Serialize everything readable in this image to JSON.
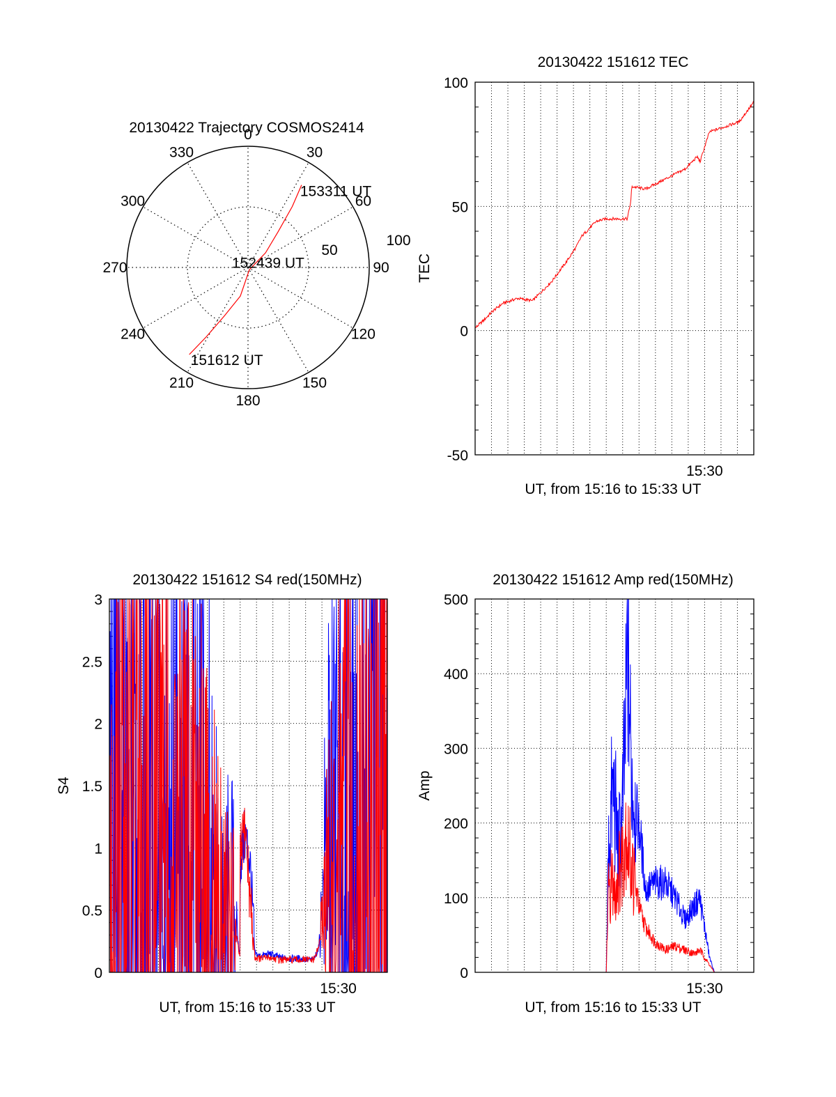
{
  "chart_data": [
    {
      "type": "polar",
      "title": "20130422 Trajectory COSMOS2414",
      "angle_ticks": [
        "0",
        "30",
        "60",
        "90",
        "120",
        "150",
        "180",
        "210",
        "240",
        "270",
        "300",
        "330"
      ],
      "radius_ticks": [
        "50",
        "100"
      ],
      "rlim": [
        0,
        100
      ],
      "grid": true,
      "series": [
        {
          "color": "#ff0000",
          "points": [
            {
              "az": 214,
              "el": 12,
              "label": "151612 UT"
            },
            {
              "az": 211,
              "el": 30
            },
            {
              "az": 206,
              "el": 50
            },
            {
              "az": 195,
              "el": 68
            },
            {
              "az": 150,
              "el": 88,
              "label": "152439 UT"
            },
            {
              "az": 50,
              "el": 73
            },
            {
              "az": 40,
              "el": 55
            },
            {
              "az": 36,
              "el": 34
            },
            {
              "az": 33,
              "el": 17,
              "label": "153311 UT"
            }
          ]
        }
      ]
    },
    {
      "type": "line",
      "title": "20130422 151612 TEC",
      "xlabel": "UT, from 15:16 to 15:33 UT",
      "ylabel": "TEC",
      "xlim": [
        15.2667,
        15.55
      ],
      "ylim": [
        -50,
        100
      ],
      "yticks": [
        "100",
        "50",
        "0",
        "-50"
      ],
      "xticks": [
        {
          "value": 15.5,
          "label": "15:30"
        }
      ],
      "grid": true,
      "series": [
        {
          "color": "#ff0000",
          "x": [
            15.2667,
            15.275,
            15.285,
            15.295,
            15.31,
            15.325,
            15.33,
            15.345,
            15.36,
            15.37,
            15.375,
            15.385,
            15.39,
            15.4,
            15.41,
            15.4215,
            15.425,
            15.426,
            15.44,
            15.46,
            15.48,
            15.4925,
            15.4955,
            15.5,
            15.505,
            15.52,
            15.535,
            15.55
          ],
          "y": [
            1,
            4,
            8,
            11,
            13,
            12,
            14,
            20,
            28,
            34,
            38,
            42,
            44,
            45,
            45,
            45,
            52,
            58,
            57,
            61,
            65,
            70,
            68,
            74,
            80,
            82,
            84,
            92
          ]
        }
      ]
    },
    {
      "type": "line",
      "title": "20130422 151612 S4 red(150MHz)",
      "xlabel": "UT, from 15:16 to 15:33 UT",
      "ylabel": "S4",
      "xlim": [
        15.2667,
        15.55
      ],
      "ylim": [
        0,
        3
      ],
      "yticks": [
        "3",
        "2.5",
        "2",
        "1.5",
        "1",
        "0.5",
        "0"
      ],
      "xticks": [
        {
          "value": 15.5,
          "label": "15:30"
        }
      ],
      "grid": true,
      "series": [
        {
          "color": "#0000ff",
          "x": [
            15.2667,
            15.28,
            15.3,
            15.32,
            15.34,
            15.36,
            15.37,
            15.375,
            15.38,
            15.39,
            15.4,
            15.4,
            15.405,
            15.41,
            15.415,
            15.42,
            15.43,
            15.44,
            15.45,
            15.46,
            15.47,
            15.475,
            15.48,
            15.49,
            15.5,
            15.52,
            15.535,
            15.55
          ],
          "y": [
            2.6,
            2.9,
            2.3,
            2.1,
            2.0,
            1.9,
            1.5,
            1.2,
            0.9,
            0.8,
            0.1,
            0.9,
            1.1,
            0.9,
            0.15,
            0.13,
            0.15,
            0.12,
            0.11,
            0.11,
            0.1,
            0.1,
            0.2,
            1.3,
            1.9,
            2.5,
            2.9,
            2.8
          ]
        },
        {
          "color": "#ff0000",
          "x": [
            15.2667,
            15.28,
            15.3,
            15.32,
            15.34,
            15.36,
            15.37,
            15.375,
            15.38,
            15.39,
            15.4,
            15.4,
            15.405,
            15.41,
            15.415,
            15.42,
            15.43,
            15.44,
            15.45,
            15.46,
            15.47,
            15.475,
            15.48,
            15.49,
            15.5,
            15.52,
            15.535,
            15.55
          ],
          "y": [
            1.9,
            2.2,
            2.1,
            1.9,
            1.7,
            1.5,
            1.2,
            1.0,
            0.7,
            0.6,
            0.1,
            0.9,
            1.2,
            0.6,
            0.12,
            0.11,
            0.12,
            0.1,
            0.1,
            0.1,
            0.1,
            0.1,
            0.2,
            0.8,
            1.4,
            2.0,
            2.6,
            2.8
          ]
        }
      ]
    },
    {
      "type": "line",
      "title": "20130422 151612 Amp red(150MHz)",
      "xlabel": "UT, from 15:16 to 15:33 UT",
      "ylabel": "Amp",
      "xlim": [
        15.2667,
        15.55
      ],
      "ylim": [
        0,
        500
      ],
      "yticks": [
        "500",
        "400",
        "300",
        "200",
        "100",
        "0"
      ],
      "xticks": [
        {
          "value": 15.5,
          "label": "15:30"
        }
      ],
      "grid": true,
      "series": [
        {
          "color": "#0000ff",
          "x": [
            15.2667,
            15.4,
            15.402,
            15.405,
            15.408,
            15.412,
            15.416,
            15.42,
            15.422,
            15.425,
            15.43,
            15.435,
            15.44,
            15.45,
            15.46,
            15.47,
            15.48,
            15.49,
            15.495,
            15.5,
            15.505,
            15.51,
            15.55
          ],
          "y": [
            0,
            0,
            150,
            220,
            240,
            160,
            200,
            330,
            450,
            280,
            220,
            180,
            110,
            120,
            120,
            100,
            70,
            90,
            100,
            60,
            20,
            0,
            0
          ]
        },
        {
          "color": "#ff0000",
          "x": [
            15.2667,
            15.4,
            15.402,
            15.405,
            15.408,
            15.412,
            15.416,
            15.42,
            15.422,
            15.425,
            15.43,
            15.435,
            15.44,
            15.45,
            15.46,
            15.47,
            15.48,
            15.49,
            15.495,
            15.5,
            15.505,
            15.51,
            15.55
          ],
          "y": [
            0,
            0,
            100,
            120,
            110,
            130,
            150,
            200,
            170,
            150,
            110,
            80,
            60,
            40,
            30,
            35,
            30,
            25,
            30,
            20,
            10,
            0,
            0
          ]
        }
      ]
    }
  ]
}
